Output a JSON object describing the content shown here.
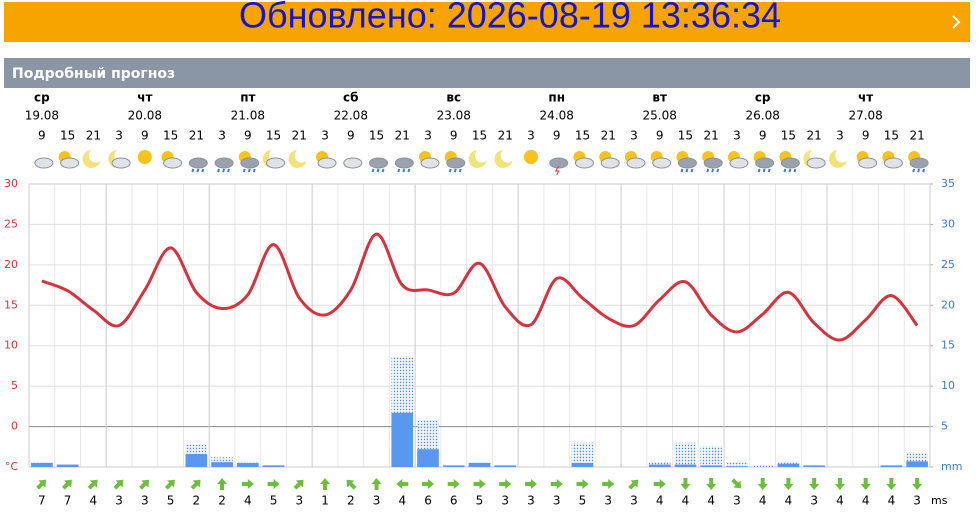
{
  "banner": {
    "updated": "Обновлено: 2026-08-19 13:36:34"
  },
  "section_title": "Подробный прогноз",
  "chart_data": {
    "type": "line",
    "days": [
      {
        "name": "ср",
        "date": "19.08",
        "col": 0
      },
      {
        "name": "чт",
        "date": "20.08",
        "col": 3
      },
      {
        "name": "пт",
        "date": "21.08",
        "col": 7
      },
      {
        "name": "сб",
        "date": "22.08",
        "col": 11
      },
      {
        "name": "вс",
        "date": "23.08",
        "col": 15
      },
      {
        "name": "пн",
        "date": "24.08",
        "col": 19
      },
      {
        "name": "вт",
        "date": "25.08",
        "col": 23
      },
      {
        "name": "ср",
        "date": "26.08",
        "col": 27
      },
      {
        "name": "чт",
        "date": "27.08",
        "col": 31
      }
    ],
    "categories": [
      "9",
      "15",
      "21",
      "3",
      "9",
      "15",
      "21",
      "3",
      "9",
      "15",
      "21",
      "3",
      "9",
      "15",
      "21",
      "3",
      "9",
      "15",
      "21",
      "3",
      "9",
      "15",
      "21",
      "3",
      "9",
      "15",
      "21",
      "3",
      "9",
      "15",
      "21",
      "3",
      "9",
      "15",
      "21"
    ],
    "series": [
      {
        "type": "line",
        "color": "#d5333e",
        "values": [
          18.0,
          16.8,
          14.4,
          12.5,
          16.9,
          22.1,
          16.6,
          14.6,
          16.3,
          22.5,
          15.9,
          13.8,
          16.9,
          23.8,
          17.5,
          16.9,
          16.5,
          20.2,
          14.8,
          12.6,
          18.3,
          15.9,
          13.4,
          12.5,
          15.7,
          17.9,
          13.8,
          11.7,
          13.9,
          16.6,
          12.8,
          10.7,
          13.2,
          16.2,
          12.5
        ]
      },
      {
        "type": "bar",
        "axis": "y2",
        "color": "#5a98f0",
        "values": [
          0.5,
          0.3,
          0,
          0,
          0,
          0,
          1.6,
          0.6,
          0.5,
          0.2,
          0,
          0,
          0,
          0,
          6.7,
          2.2,
          0.2,
          0.5,
          0.2,
          0,
          0,
          0.5,
          0,
          0,
          0.3,
          0.3,
          0.2,
          0.1,
          0,
          0.4,
          0.2,
          0,
          0,
          0.2,
          0.7
        ]
      },
      {
        "type": "bar-dotted",
        "axis": "y2",
        "color": "#5a98f0",
        "values": [
          0.6,
          0.3,
          0,
          0,
          0,
          0,
          2.8,
          1.2,
          0.7,
          0.2,
          0,
          0,
          0,
          0,
          13.6,
          5.8,
          0.2,
          0.6,
          0.2,
          0,
          0,
          3.0,
          0,
          0,
          0.6,
          3.0,
          2.6,
          0.6,
          0.2,
          0.7,
          0.2,
          0,
          0,
          0.2,
          1.7
        ]
      }
    ],
    "ylim": [
      -5,
      30
    ],
    "yticks": [
      {
        "value": -5,
        "label": "°C"
      },
      0,
      5,
      10,
      15,
      20,
      25,
      30
    ],
    "y2lim": [
      0,
      35
    ],
    "y2ticks": [
      {
        "value": 0,
        "label": "mm"
      },
      5,
      10,
      15,
      20,
      25,
      30,
      35
    ],
    "grid": true,
    "wind": {
      "unit": "ms",
      "values": [
        7,
        7,
        4,
        3,
        3,
        5,
        2,
        2,
        4,
        5,
        3,
        1,
        2,
        3,
        4,
        6,
        6,
        5,
        3,
        3,
        3,
        5,
        3,
        3,
        4,
        4,
        4,
        3,
        4,
        4,
        3,
        4,
        4,
        4,
        3
      ]
    }
  }
}
